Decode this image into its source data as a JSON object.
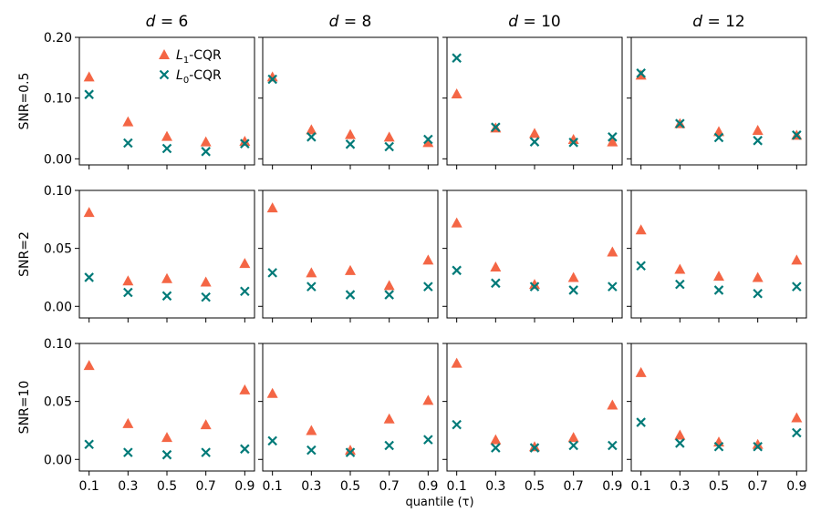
{
  "chart_data": {
    "type": "scatter",
    "xlabel": "quantile (τ)",
    "x": [
      0.1,
      0.3,
      0.5,
      0.7,
      0.9
    ],
    "x_tick_labels": [
      "0.1",
      "0.3",
      "0.5",
      "0.7",
      "0.9"
    ],
    "columns": [
      {
        "d_label": "d",
        "d_value": "6"
      },
      {
        "d_label": "d",
        "d_value": "8"
      },
      {
        "d_label": "d",
        "d_value": "10"
      },
      {
        "d_label": "d",
        "d_value": "12"
      }
    ],
    "rows": [
      {
        "label": "SNR=0.5",
        "ylim": [
          -0.01,
          0.2
        ],
        "yticks": [
          0.0,
          0.1,
          0.2
        ],
        "ytick_labels": [
          "0.00",
          "0.10",
          "0.20"
        ]
      },
      {
        "label": "SNR=2",
        "ylim": [
          -0.01,
          0.1
        ],
        "yticks": [
          0.0,
          0.05,
          0.1
        ],
        "ytick_labels": [
          "0.00",
          "0.05",
          "0.10"
        ]
      },
      {
        "label": "SNR=10",
        "ylim": [
          -0.01,
          0.1
        ],
        "yticks": [
          0.0,
          0.05,
          0.1
        ],
        "ytick_labels": [
          "0.00",
          "0.05",
          "0.10"
        ]
      }
    ],
    "series": [
      {
        "name_main": "L",
        "name_sub": "1",
        "name_rest": "-CQR",
        "marker": "triangle",
        "color": "#f46645"
      },
      {
        "name_main": "L",
        "name_sub": "0",
        "name_rest": "-CQR",
        "marker": "x",
        "color": "#007a78"
      }
    ],
    "legend_position": "top-right of first panel",
    "panels": [
      [
        {
          "L1": [
            0.135,
            0.061,
            0.037,
            0.028,
            0.029
          ],
          "L0": [
            0.106,
            0.026,
            0.017,
            0.012,
            0.025
          ]
        },
        {
          "L1": [
            0.135,
            0.048,
            0.04,
            0.036,
            0.027
          ],
          "L0": [
            0.131,
            0.036,
            0.024,
            0.02,
            0.032
          ]
        },
        {
          "L1": [
            0.107,
            0.051,
            0.042,
            0.032,
            0.028
          ],
          "L0": [
            0.166,
            0.052,
            0.028,
            0.027,
            0.036
          ]
        },
        {
          "L1": [
            0.138,
            0.058,
            0.045,
            0.047,
            0.039
          ],
          "L0": [
            0.141,
            0.058,
            0.035,
            0.03,
            0.039
          ]
        }
      ],
      [
        {
          "L1": [
            0.081,
            0.022,
            0.024,
            0.021,
            0.037
          ],
          "L0": [
            0.025,
            0.012,
            0.009,
            0.008,
            0.013
          ]
        },
        {
          "L1": [
            0.085,
            0.029,
            0.031,
            0.018,
            0.04
          ],
          "L0": [
            0.029,
            0.017,
            0.01,
            0.01,
            0.017
          ]
        },
        {
          "L1": [
            0.072,
            0.034,
            0.019,
            0.025,
            0.047
          ],
          "L0": [
            0.031,
            0.02,
            0.017,
            0.014,
            0.017
          ]
        },
        {
          "L1": [
            0.066,
            0.032,
            0.026,
            0.025,
            0.04
          ],
          "L0": [
            0.035,
            0.019,
            0.014,
            0.011,
            0.017
          ]
        }
      ],
      [
        {
          "L1": [
            0.081,
            0.031,
            0.019,
            0.03,
            0.06
          ],
          "L0": [
            0.013,
            0.006,
            0.004,
            0.006,
            0.009
          ]
        },
        {
          "L1": [
            0.057,
            0.025,
            0.008,
            0.035,
            0.051
          ],
          "L0": [
            0.016,
            0.008,
            0.006,
            0.012,
            0.017
          ]
        },
        {
          "L1": [
            0.083,
            0.017,
            0.011,
            0.019,
            0.047
          ],
          "L0": [
            0.03,
            0.01,
            0.01,
            0.012,
            0.012
          ]
        },
        {
          "L1": [
            0.075,
            0.021,
            0.015,
            0.013,
            0.036
          ],
          "L0": [
            0.032,
            0.014,
            0.011,
            0.011,
            0.023
          ]
        }
      ]
    ]
  }
}
